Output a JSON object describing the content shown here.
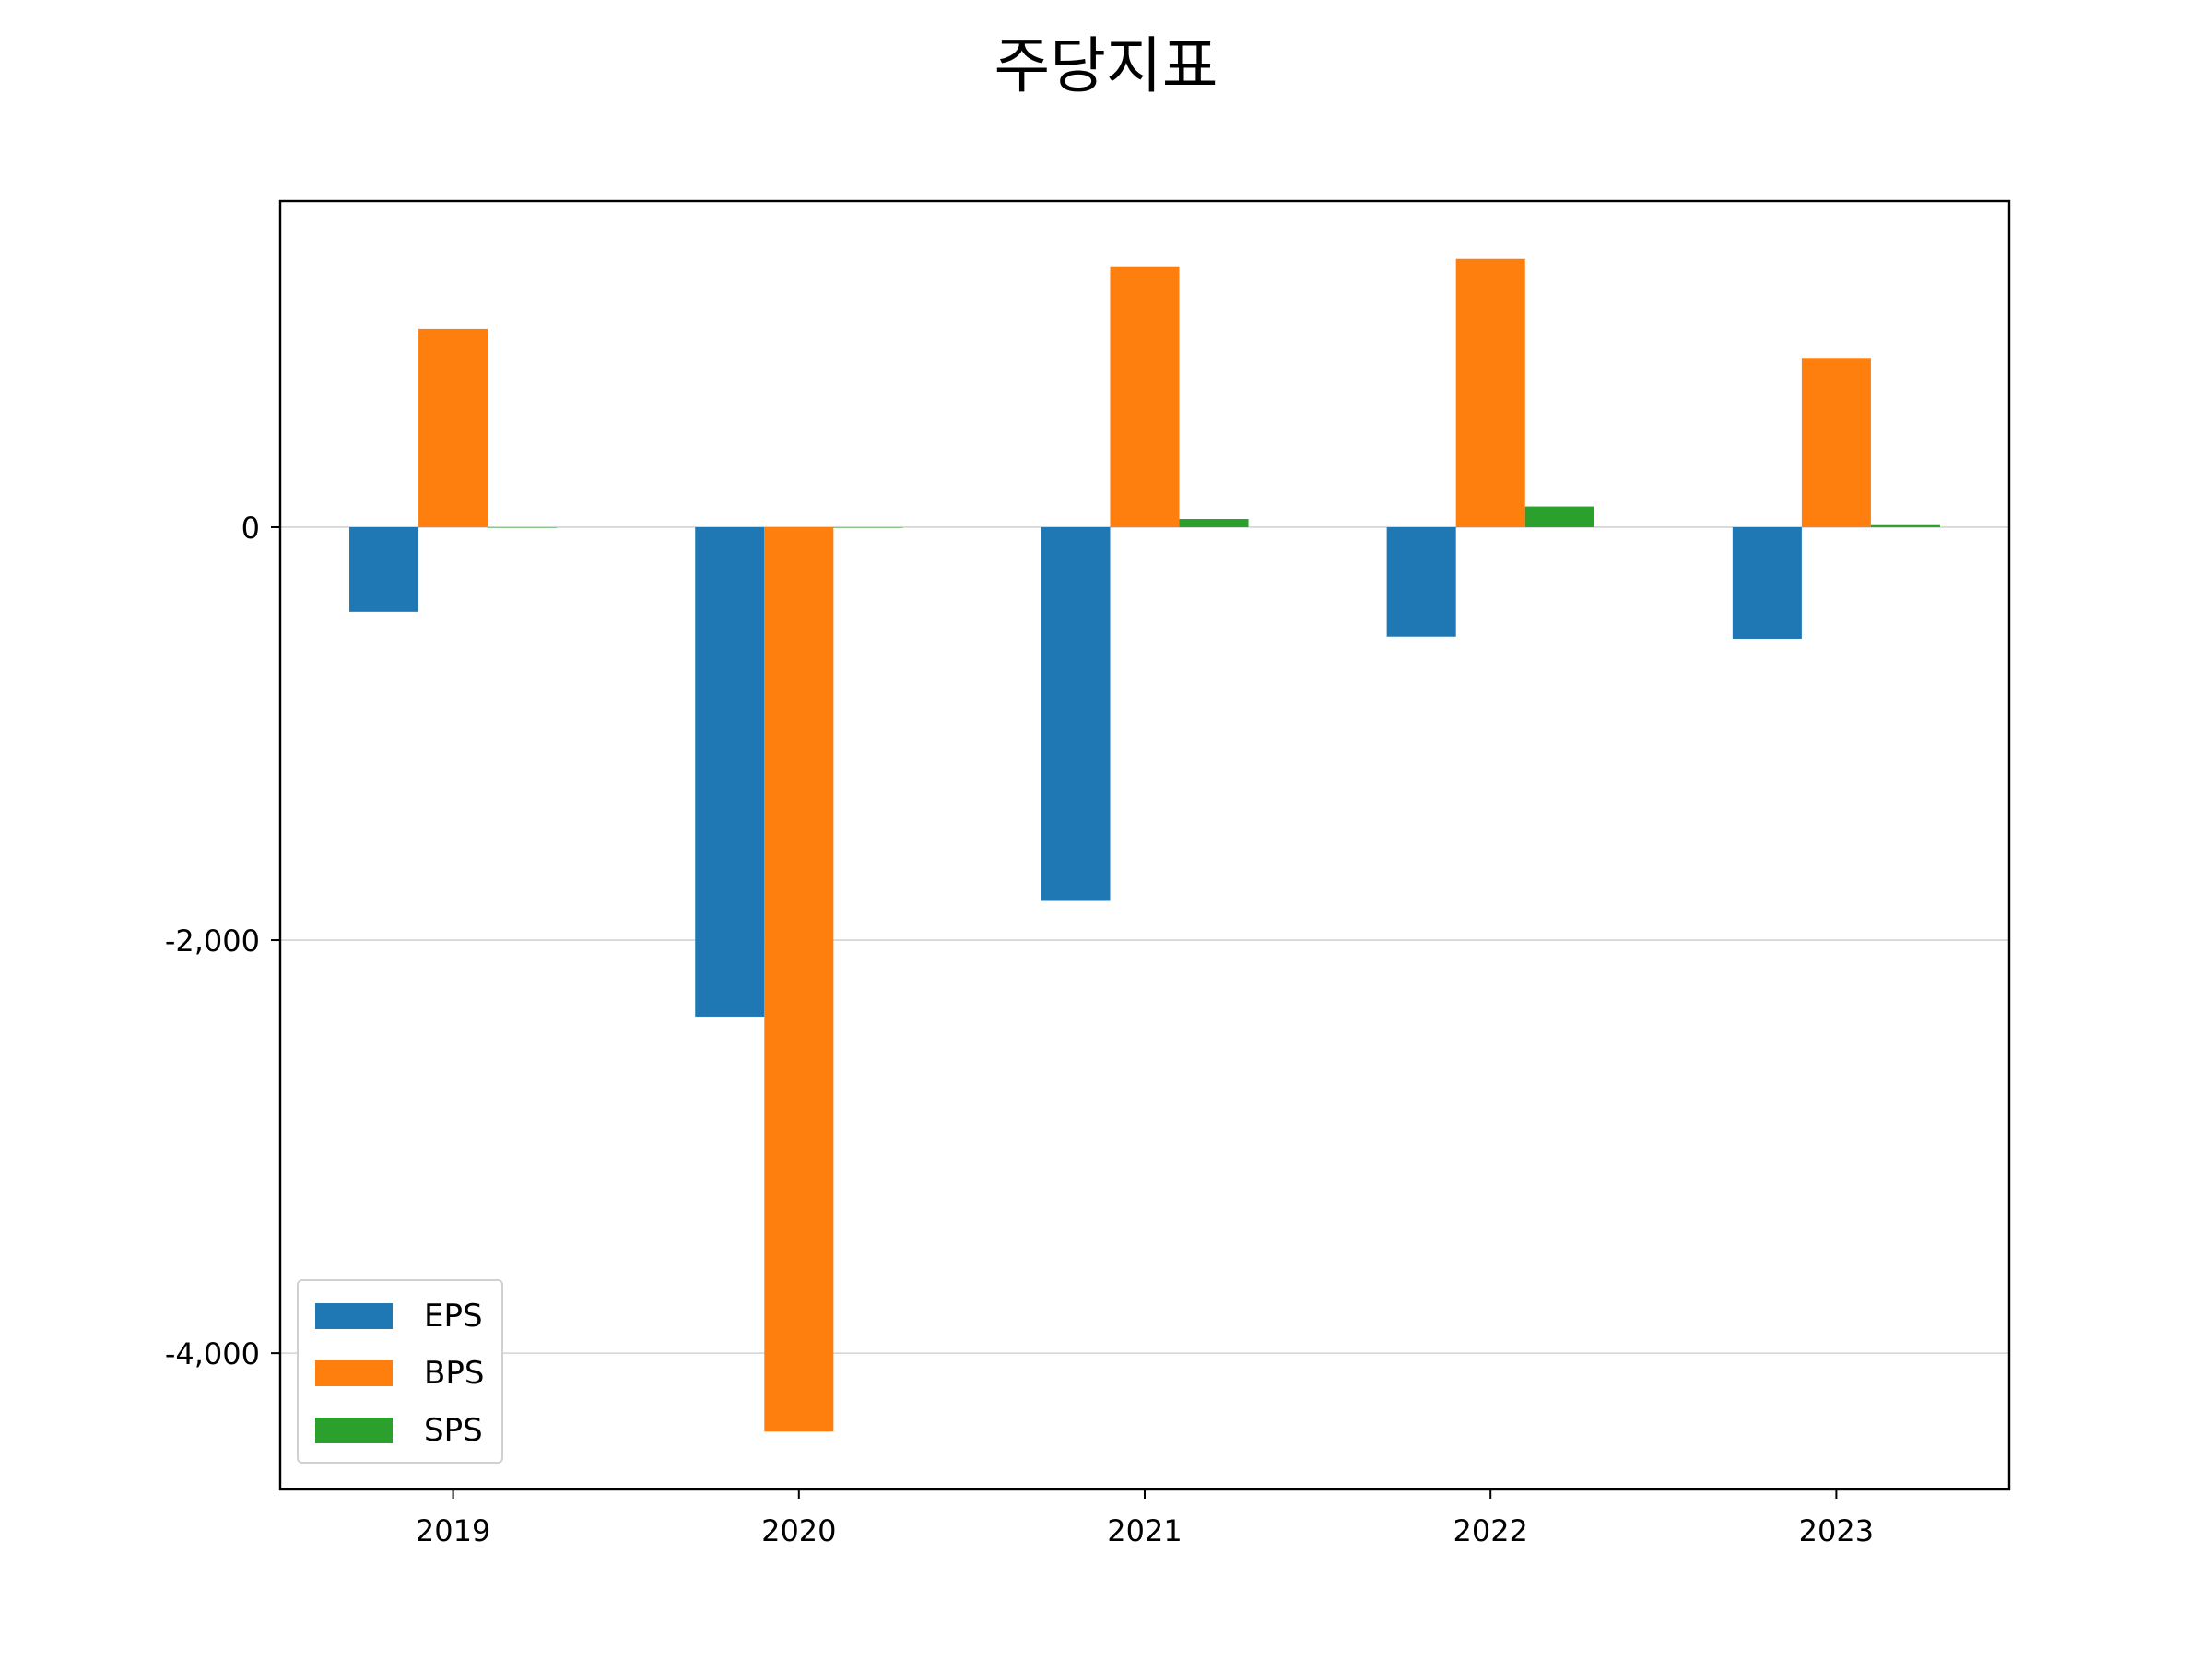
{
  "chart_data": {
    "type": "bar",
    "title": "주당지표",
    "xlabel": "",
    "ylabel": "",
    "categories": [
      "2019",
      "2020",
      "2021",
      "2022",
      "2023"
    ],
    "series": [
      {
        "name": "EPS",
        "color": "#1f77b4",
        "values": [
          -410,
          -2370,
          -1810,
          -530,
          -540
        ]
      },
      {
        "name": "BPS",
        "color": "#ff7f0e",
        "values": [
          960,
          -4380,
          1260,
          1300,
          820
        ]
      },
      {
        "name": "SPS",
        "color": "#2ca02c",
        "values": [
          0,
          0,
          40,
          100,
          10
        ]
      }
    ],
    "ylim": [
      -4660,
      1580
    ],
    "yticks": [
      0,
      -2000,
      -4000
    ],
    "ytick_labels": [
      "0",
      "-2,000",
      "-4,000"
    ],
    "grid": "y",
    "legend": "lower-left"
  }
}
